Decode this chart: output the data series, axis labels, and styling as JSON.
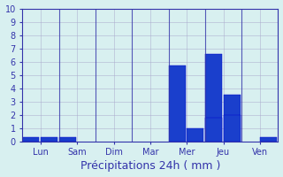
{
  "categories": [
    "Lun",
    "Sam",
    "Dim",
    "Mar",
    "Mer",
    "Jeu",
    "Ven"
  ],
  "bar_values": [
    [
      0.3,
      0.3,
      0,
      0,
      0,
      0,
      0,
      0,
      0,
      0,
      0,
      0,
      0,
      0
    ],
    [
      0,
      0,
      0.3,
      0,
      0,
      0,
      0,
      0,
      0,
      0,
      0,
      0,
      0,
      0
    ],
    [
      0,
      0,
      0,
      0,
      0,
      0,
      0,
      0,
      0,
      0,
      0,
      0,
      0,
      0
    ],
    [
      0,
      0,
      0,
      0,
      0,
      0,
      0,
      0,
      0,
      0,
      0,
      0,
      0,
      0
    ],
    [
      0,
      0,
      0,
      0,
      0,
      0,
      0,
      0,
      5.7,
      1.0,
      0,
      0,
      0,
      0
    ],
    [
      0,
      0,
      0,
      0,
      0,
      0,
      0,
      0,
      0,
      0,
      6.6,
      3.5,
      1.8,
      2.0
    ],
    [
      0,
      0,
      0,
      0,
      0,
      0,
      0,
      0,
      0,
      0,
      0,
      0,
      0,
      0.3
    ]
  ],
  "bar_color": "#1a3fcc",
  "bar_edge_color": "#0000cc",
  "background_color": "#d8f0f0",
  "grid_color": "#aaaacc",
  "xlabel": "Précipitations 24h ( mm )",
  "xlabel_fontsize": 9,
  "tick_labels": [
    "Lun",
    "Sam",
    "Dim",
    "Mar",
    "Mer",
    "Jeu",
    "Ven"
  ],
  "ylim": [
    0,
    10
  ],
  "yticks": [
    0,
    1,
    2,
    3,
    4,
    5,
    6,
    7,
    8,
    9,
    10
  ],
  "num_bars": 14,
  "tick_color": "#3333aa",
  "axis_color": "#3333aa"
}
